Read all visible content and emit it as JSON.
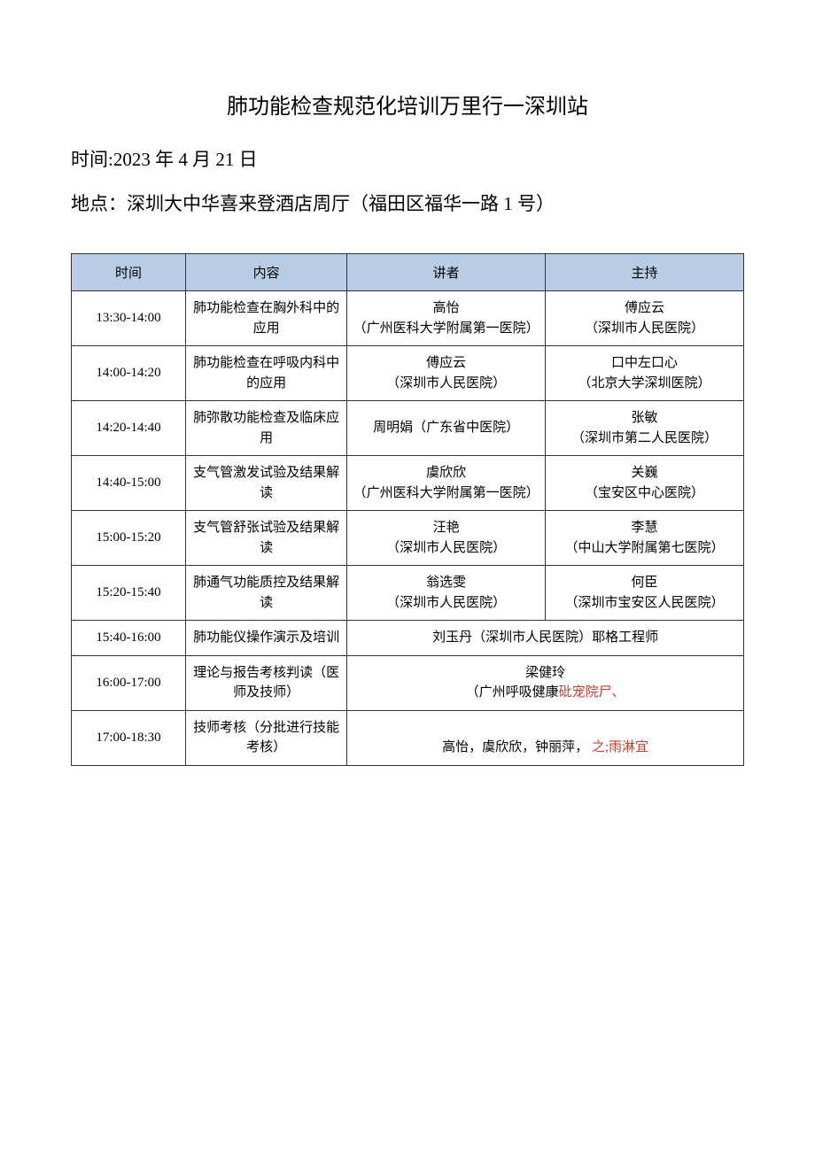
{
  "title": "肺功能检查规范化培训万里行一深圳站",
  "date_label": "时间:",
  "date_value": "2023 年 4 月 21 日",
  "location_label": "地点：",
  "location_value": "深圳大中华喜来登酒店周厅（福田区福华一路 1 号）",
  "headers": {
    "time": "时间",
    "content": "内容",
    "speaker": "讲者",
    "host": "主持"
  },
  "rows": [
    {
      "time": "13:30-14:00",
      "content": "肺功能检查在胸外科中的应用",
      "speaker": "高怡\n（广州医科大学附属第一医院）",
      "host": "傅应云\n（深圳市人民医院）"
    },
    {
      "time": "14:00-14:20",
      "content": "肺功能检查在呼吸内科中的应用",
      "speaker": "傅应云\n（深圳市人民医院）",
      "host": "口中左口心\n（北京大学深圳医院）"
    },
    {
      "time": "14:20-14:40",
      "content": "肺弥散功能检查及临床应用",
      "speaker": "周明娟（广东省中医院）",
      "host": "张敏\n（深圳市第二人民医院）"
    },
    {
      "time": "14:40-15:00",
      "content": "支气管激发试验及结果解读",
      "speaker": "虞欣欣\n（广州医科大学附属第一医院）",
      "host": "关巍\n（宝安区中心医院）"
    },
    {
      "time": "15:00-15:20",
      "content": "支气管舒张试验及结果解读",
      "speaker": "汪艳\n（深圳市人民医院）",
      "host": "李慧\n（中山大学附属第七医院）"
    },
    {
      "time": "15:20-15:40",
      "content": "肺通气功能质控及结果解读",
      "speaker": "翁选雯\n（深圳市人民医院）",
      "host": "何臣\n（深圳市宝安区人民医院）"
    },
    {
      "time": "15:40-16:00",
      "content": "肺功能仪操作演示及培训",
      "merged": "刘玉丹（深圳市人民医院）耶格工程师"
    },
    {
      "time": "16:00-17:00",
      "content": "理论与报告考核判读（医师及技师）",
      "merged_plain": "梁健玲\n（广州呼吸健康",
      "merged_red": "砒宠院尸、"
    },
    {
      "time": "17:00-18:30",
      "content": "技师考核（分批进行技能考核）",
      "merged_plain": "高怡，虞欣欣，钟丽萍， ",
      "merged_red": "之;雨淋宜"
    }
  ],
  "colors": {
    "header_bg": "#b8cce4",
    "red_text": "#c04030",
    "text": "#000000",
    "border": "#333333",
    "background": "#ffffff"
  }
}
